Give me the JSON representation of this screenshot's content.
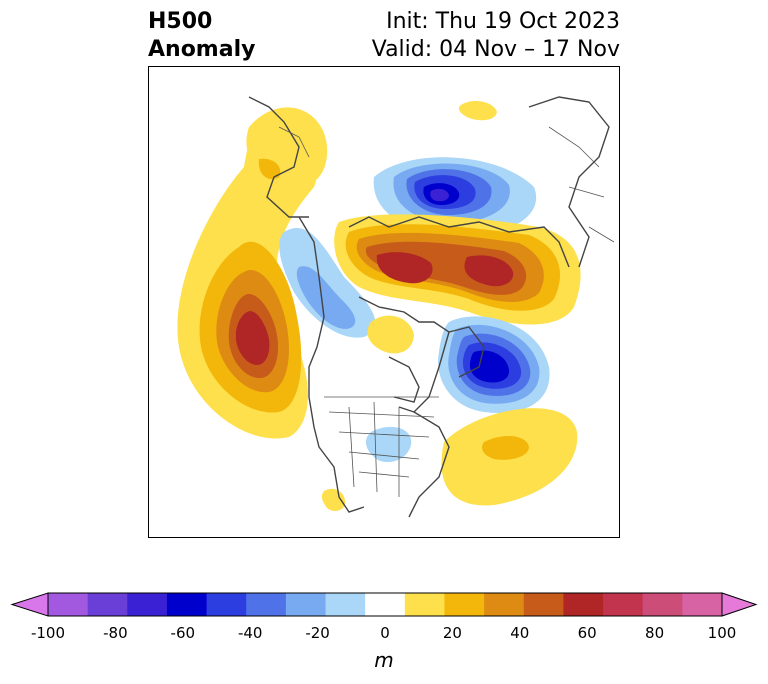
{
  "title": {
    "field": "H500",
    "kind": "Anomaly",
    "init": "Init: Thu 19 Oct 2023",
    "valid": "Valid: 04 Nov – 17 Nov"
  },
  "colorbar": {
    "unit": "m",
    "ticks": [
      "-100",
      "-80",
      "-60",
      "-40",
      "-20",
      "0",
      "20",
      "40",
      "60",
      "80",
      "100"
    ],
    "colors": [
      "#d777ea",
      "#a259e0",
      "#6a3fd8",
      "#3a22d4",
      "#0000cd",
      "#2c3ee0",
      "#4f72e8",
      "#77aaf0",
      "#aad6f8",
      "#ffffff",
      "#fde04b",
      "#f2b70a",
      "#de8b14",
      "#c75c1a",
      "#b02525",
      "#c2344e",
      "#cc4d78",
      "#d762a4",
      "#e67ad8"
    ],
    "extend": "both"
  },
  "map": {
    "projection": "north polar stereographic",
    "region": "North America / Arctic",
    "anomaly_centers": [
      {
        "sign": "positive",
        "level": "60",
        "location": "Gulf of Alaska / NE Pacific"
      },
      {
        "sign": "positive",
        "level": "60",
        "location": "Siberia / Laptev Sea"
      },
      {
        "sign": "negative",
        "level": "-60",
        "location": "Northern Eurasia / Kara Sea"
      },
      {
        "sign": "negative",
        "level": "-60",
        "location": "North Atlantic / Greenland Sea"
      },
      {
        "sign": "negative",
        "level": "-20",
        "location": "Bering Strait"
      },
      {
        "sign": "positive",
        "level": "20",
        "location": "Western North Atlantic"
      },
      {
        "sign": "negative",
        "level": "-20",
        "location": "Great Lakes"
      }
    ]
  }
}
